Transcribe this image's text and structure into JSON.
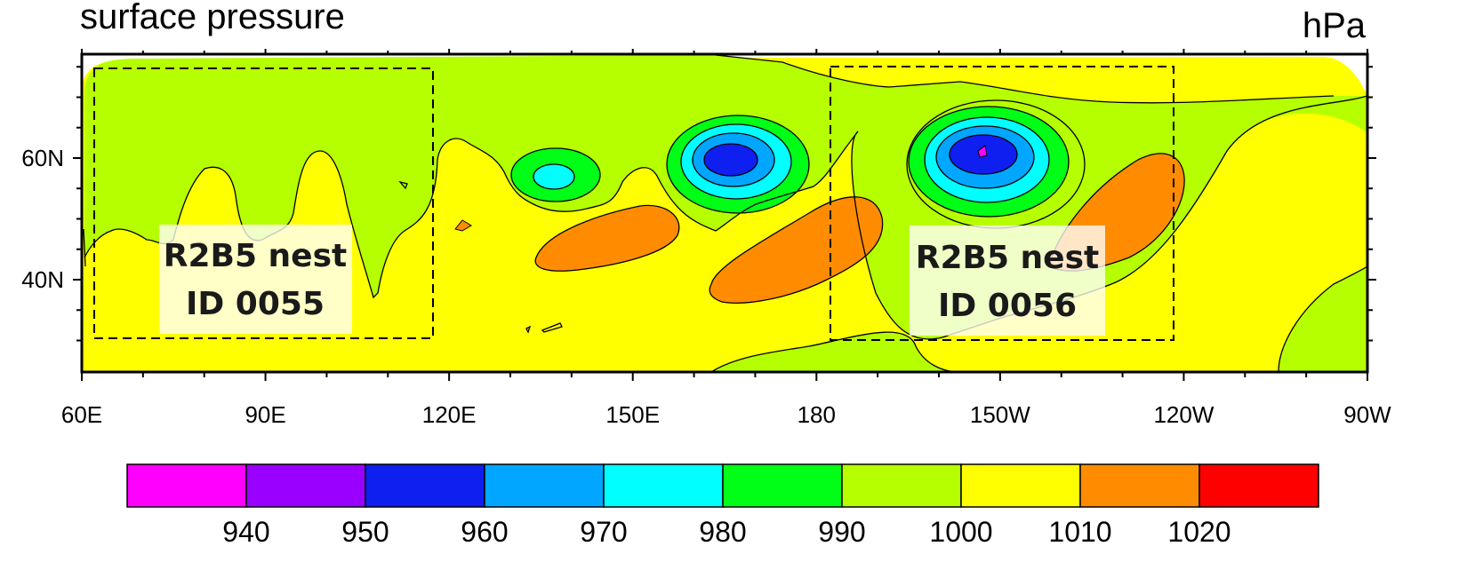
{
  "chart_data": {
    "type": "contour",
    "title": "surface pressure",
    "units": "hPa",
    "x_ticks": [
      "60E",
      "90E",
      "120E",
      "150E",
      "180",
      "150W",
      "120W",
      "90W"
    ],
    "y_ticks": [
      "40N",
      "60N"
    ],
    "xlim": [
      "60E",
      "90W"
    ],
    "colorbar": {
      "levels": [
        940,
        950,
        960,
        970,
        980,
        990,
        1000,
        1010,
        1020
      ],
      "colors": [
        "#ff00ff",
        "#9a00ff",
        "#0f1ff0",
        "#00a6ff",
        "#00ffff",
        "#00ff16",
        "#b6ff00",
        "#ffff00",
        "#ff8c00",
        "#ff0000"
      ]
    },
    "nests": [
      {
        "line1": "R2B5 nest",
        "line2": "ID 0055"
      },
      {
        "line1": "R2B5 nest",
        "line2": "ID 0056"
      }
    ],
    "features": [
      {
        "kind": "low",
        "lon": 137,
        "lat": 57,
        "min_band": "970-980"
      },
      {
        "kind": "low",
        "lon": 166,
        "lat": 60,
        "min_band": "950-960"
      },
      {
        "kind": "low",
        "lon": -152,
        "lat": 60,
        "min_band": "940-950"
      },
      {
        "kind": "high",
        "lon": 153,
        "lat": 45,
        "max_band": "1010-1020"
      },
      {
        "kind": "high",
        "lon": -179,
        "lat": 44,
        "max_band": "1010-1020"
      },
      {
        "kind": "high",
        "lon": -135,
        "lat": 51,
        "max_band": "1010-1020"
      }
    ]
  }
}
